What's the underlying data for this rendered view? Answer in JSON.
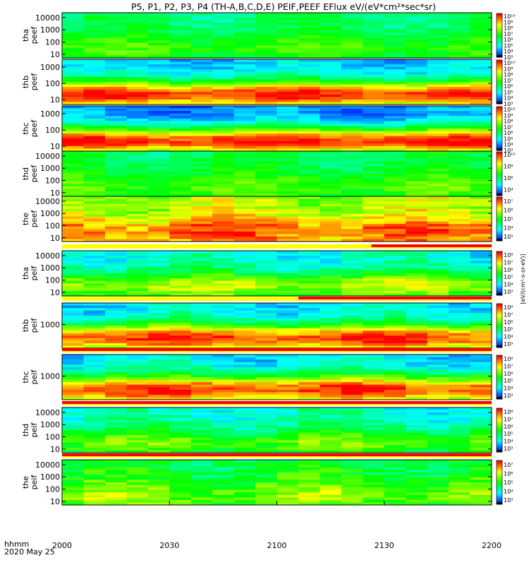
{
  "title": "P5, P1, P2, P3, P4 (TH-A,B,C,D,E) PEIF,PEEF EFlux eV/(eV*cm²*sec*sr)",
  "time_axis": {
    "label_line1": "hhmm",
    "label_line2": "2020 May 25",
    "ticks": [
      "2000",
      "2030",
      "2100",
      "2130",
      "2200"
    ]
  },
  "units_label": "[eV/(cm²-s-sr-eV)]",
  "colormap": [
    "#0000ff",
    "#00ffff",
    "#00ff00",
    "#ffff00",
    "#ff0000"
  ],
  "chart_data": {
    "type": "heatmap",
    "x_range": [
      "20:00",
      "22:00"
    ],
    "panels": [
      {
        "id": "tha-peef",
        "probe_label": "tha",
        "var_label": "peef",
        "y_ticks": [
          "10",
          "100",
          "1000",
          "10000"
        ],
        "ylim": [
          5,
          25000
        ],
        "log_y": true,
        "cbar_ticks": [
          "10³",
          "10⁴",
          "10⁵",
          "10⁶",
          "10⁷",
          "10⁸",
          "10⁹",
          "10¹⁰"
        ],
        "clim_exp": [
          3,
          10.5
        ],
        "base": 6.0,
        "peak": 7.0,
        "gate_start": null
      },
      {
        "id": "thb-peef",
        "probe_label": "thb",
        "var_label": "peef",
        "y_ticks": [
          "10",
          "100",
          "1000"
        ],
        "ylim": [
          5,
          3000
        ],
        "log_y": true,
        "cbar_ticks": [
          "10³",
          "10⁴",
          "10⁵",
          "10⁶",
          "10⁷",
          "10⁸",
          "10⁹",
          "10¹⁰"
        ],
        "clim_exp": [
          3,
          10.5
        ],
        "base": 4.5,
        "peak": 10.2,
        "gate_start": null
      },
      {
        "id": "thc-peef",
        "probe_label": "thc",
        "var_label": "peef",
        "y_ticks": [
          "10",
          "100",
          "1000"
        ],
        "ylim": [
          5,
          3000
        ],
        "log_y": true,
        "cbar_ticks": [
          "10³",
          "10⁴",
          "10⁵",
          "10⁶",
          "10⁷",
          "10⁸",
          "10⁹",
          "10¹⁰"
        ],
        "clim_exp": [
          3,
          10.5
        ],
        "base": 4.0,
        "peak": 10.3,
        "gate_start": null
      },
      {
        "id": "thd-peef",
        "probe_label": "thd",
        "var_label": "peef",
        "y_ticks": [
          "10",
          "100",
          "1000",
          "10000"
        ],
        "ylim": [
          5,
          25000
        ],
        "log_y": true,
        "cbar_ticks": [
          "10⁴",
          "10⁶",
          "10⁸",
          "10¹⁰"
        ],
        "clim_exp": [
          3,
          10.5
        ],
        "base": 6.2,
        "peak": 7.2,
        "gate_start": null
      },
      {
        "id": "the-peef",
        "probe_label": "the",
        "var_label": "peef",
        "y_ticks": [
          "10",
          "100",
          "1000",
          "10000"
        ],
        "ylim": [
          5,
          25000
        ],
        "log_y": true,
        "cbar_ticks": [
          "10³",
          "10⁴",
          "10⁵",
          "10⁶",
          "10⁷"
        ],
        "clim_exp": [
          2.5,
          7.5
        ],
        "base": 5.8,
        "peak": 7.0,
        "gate_start": null
      },
      {
        "id": "tha-peif",
        "probe_label": "tha",
        "var_label": "peif",
        "y_ticks": [
          "10",
          "100",
          "1000",
          "10000"
        ],
        "ylim": [
          5,
          25000
        ],
        "log_y": true,
        "cbar_ticks": [
          "10³",
          "10⁴",
          "10⁵",
          "10⁶",
          "10⁷",
          "10⁸"
        ],
        "clim_exp": [
          2.5,
          8.5
        ],
        "base": 4.2,
        "peak": 6.5,
        "gate_start": 0.72
      },
      {
        "id": "thb-peif",
        "probe_label": "thb",
        "var_label": "peif",
        "y_ticks": [
          "1000"
        ],
        "ylim": [
          300,
          3000
        ],
        "log_y": true,
        "cbar_ticks": [
          "10³",
          "10⁴",
          "10⁵",
          "10⁶",
          "10⁷",
          "10⁸"
        ],
        "clim_exp": [
          2.5,
          8.5
        ],
        "base": 4.0,
        "peak": 8.2,
        "gate_start": 0.55
      },
      {
        "id": "thc-peif",
        "probe_label": "thc",
        "var_label": "peif",
        "y_ticks": [
          "1000"
        ],
        "ylim": [
          300,
          3000
        ],
        "log_y": true,
        "cbar_ticks": [
          "10³",
          "10⁴",
          "10⁵",
          "10⁶",
          "10⁷",
          "10⁸"
        ],
        "clim_exp": [
          2.5,
          8.5
        ],
        "base": 4.0,
        "peak": 8.2,
        "gate_start": 0.0
      },
      {
        "id": "thd-peif",
        "probe_label": "thd",
        "var_label": "peif",
        "y_ticks": [
          "10",
          "100",
          "1000",
          "10000"
        ],
        "ylim": [
          5,
          25000
        ],
        "log_y": true,
        "cbar_ticks": [
          "10³",
          "10⁴",
          "10⁵",
          "10⁶",
          "10⁷",
          "10⁸"
        ],
        "clim_exp": [
          2.5,
          8.5
        ],
        "base": 4.3,
        "peak": 6.0,
        "gate_start": 0.0
      },
      {
        "id": "the-peif",
        "probe_label": "the",
        "var_label": "peif",
        "y_ticks": [
          "10",
          "100",
          "1000",
          "10000"
        ],
        "ylim": [
          5,
          25000
        ],
        "log_y": true,
        "cbar_ticks": [
          "10³",
          "10⁴",
          "10⁵",
          "10⁶",
          "10⁷"
        ],
        "clim_exp": [
          2.5,
          7.5
        ],
        "base": 4.8,
        "peak": 5.6,
        "gate_start": 0.0
      }
    ]
  }
}
